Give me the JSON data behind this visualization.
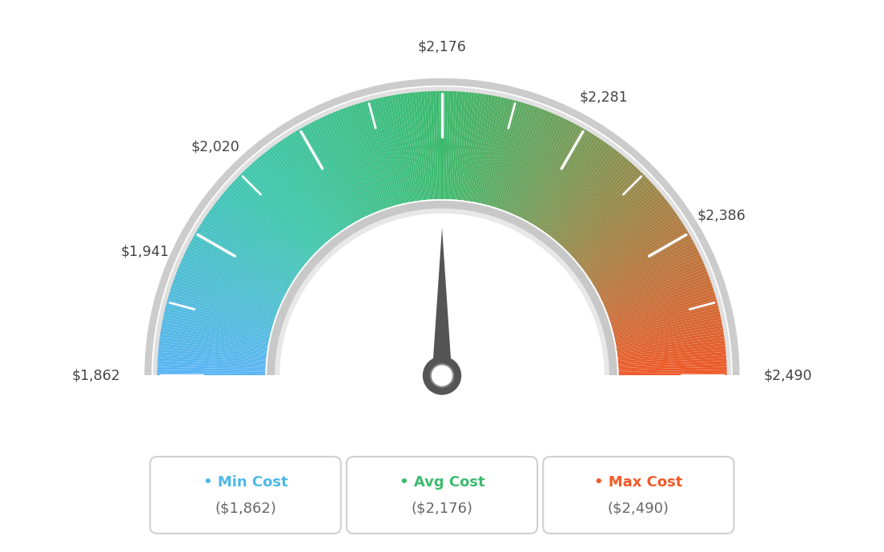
{
  "min_val": 1862,
  "max_val": 2490,
  "avg_val": 2176,
  "tick_labels": [
    "$1,862",
    "$1,941",
    "$2,020",
    "$2,176",
    "$2,281",
    "$2,386",
    "$2,490"
  ],
  "tick_values": [
    1862,
    1941,
    2020,
    2176,
    2281,
    2386,
    2490
  ],
  "legend_labels": [
    "Min Cost",
    "Avg Cost",
    "Max Cost"
  ],
  "legend_values": [
    "($1,862)",
    "($2,176)",
    "($2,490)"
  ],
  "legend_colors": [
    "#4db8e8",
    "#3dba6e",
    "#f05a28"
  ],
  "bg_color": "#ffffff",
  "color_blue": [
    0.36,
    0.71,
    0.96
  ],
  "color_teal": [
    0.31,
    0.75,
    0.72
  ],
  "color_green": [
    0.24,
    0.73,
    0.43
  ],
  "color_yellow_green": [
    0.55,
    0.72,
    0.28
  ],
  "color_orange": [
    0.94,
    0.35,
    0.16
  ]
}
